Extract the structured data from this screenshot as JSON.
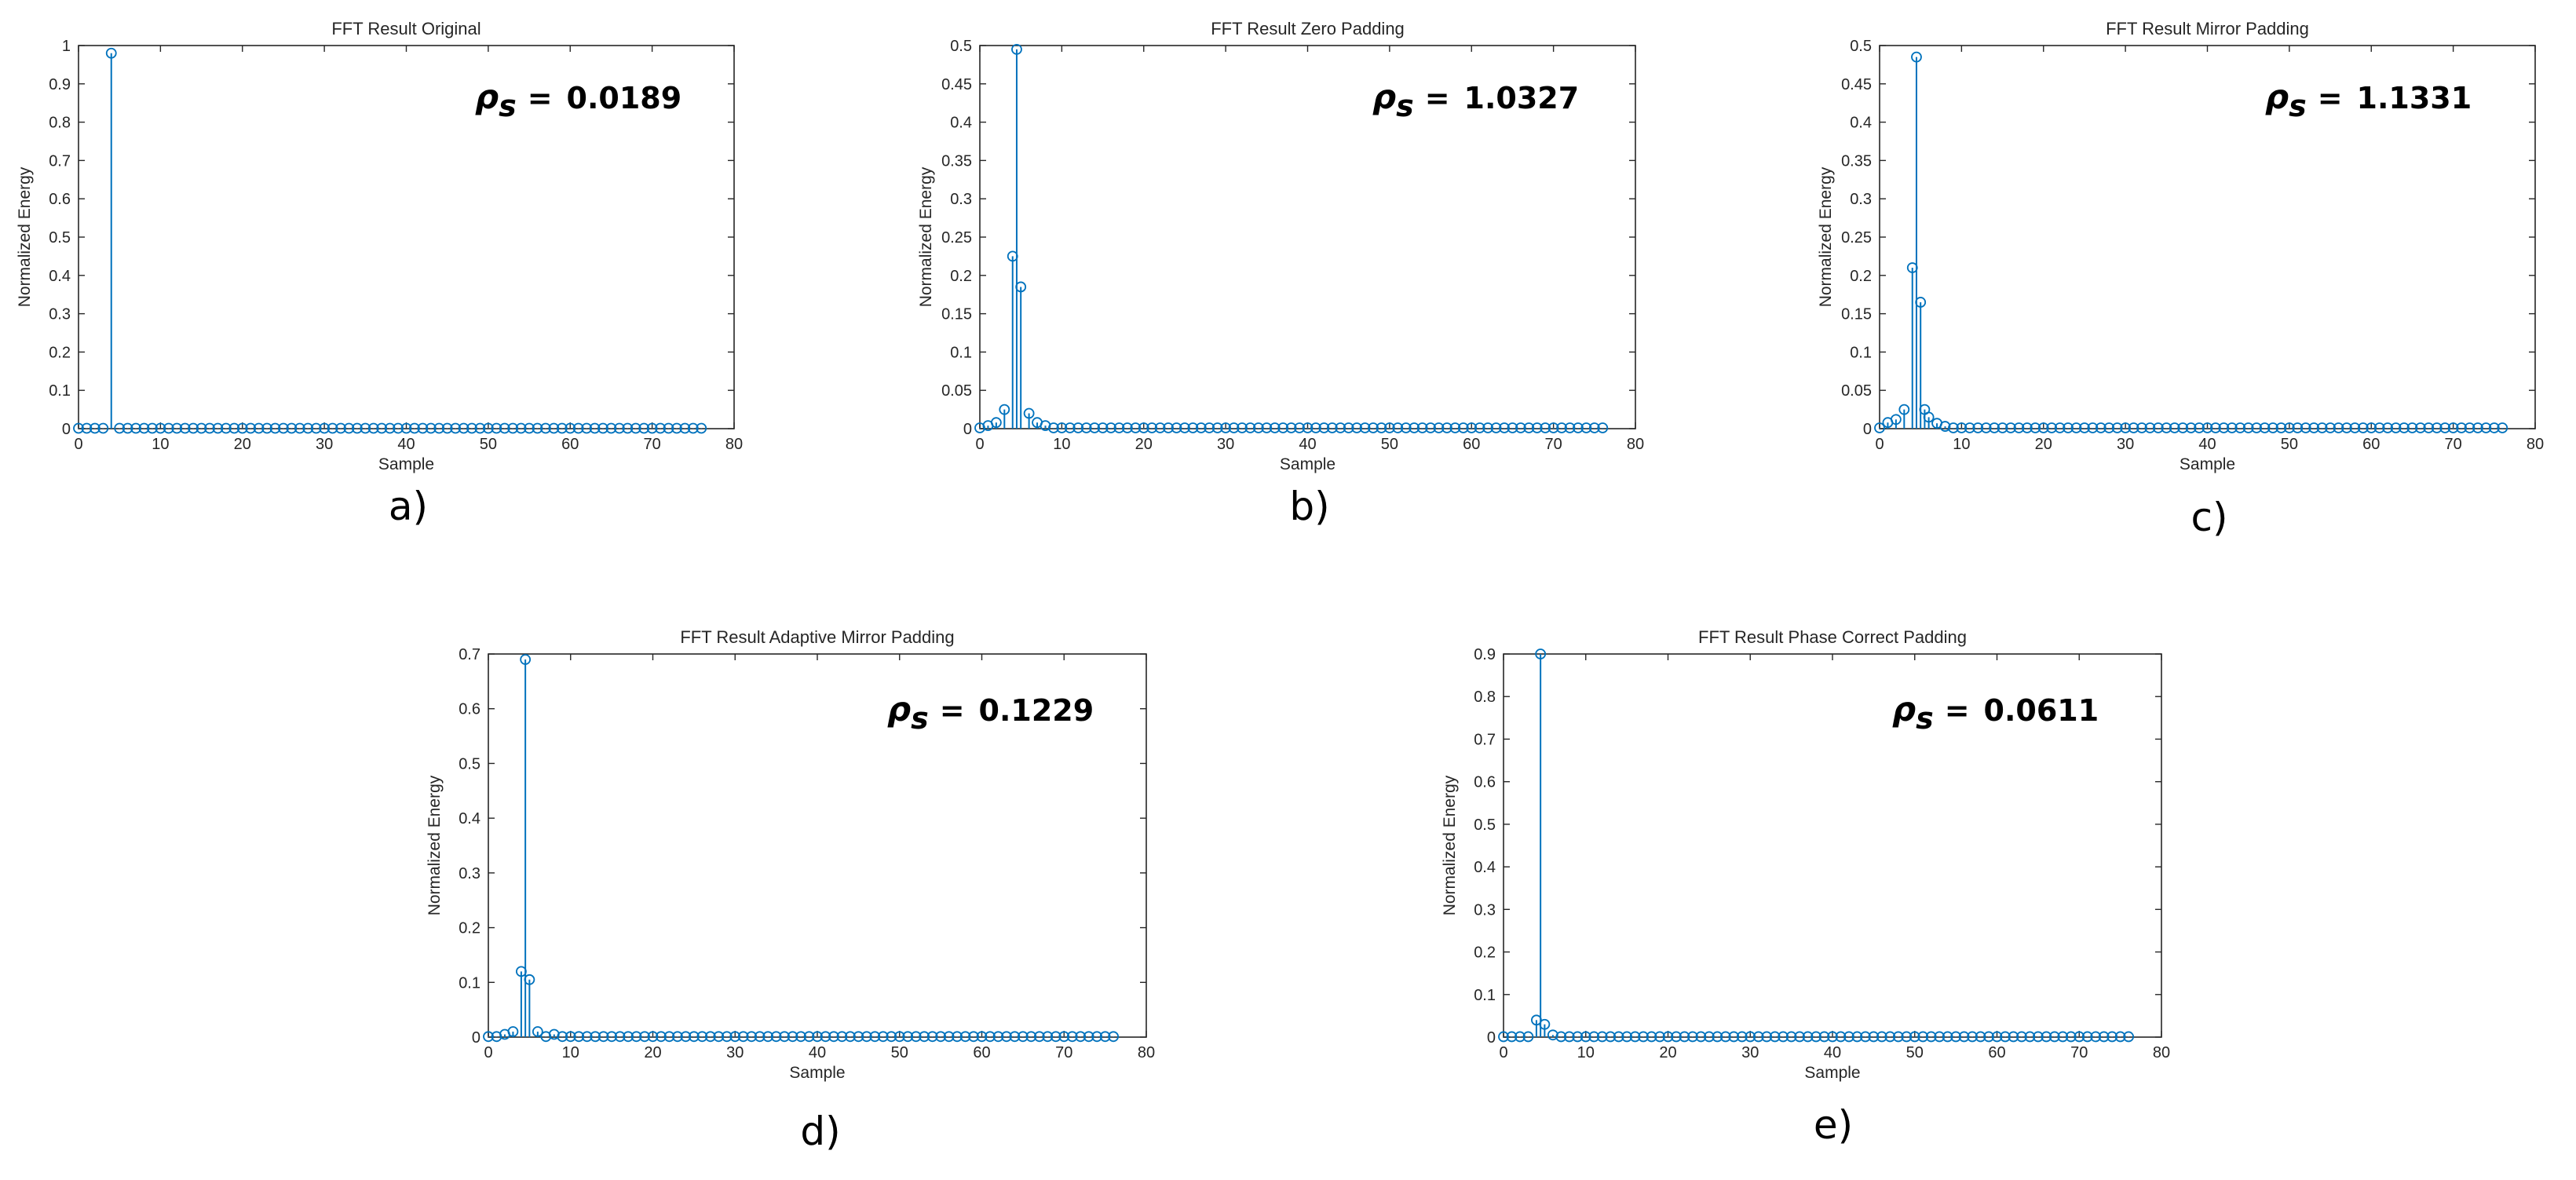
{
  "colors": {
    "stem": "#0072BD",
    "axis": "#262626",
    "background": "#ffffff"
  },
  "chart_data": [
    {
      "type": "stem",
      "caption": "a)",
      "title": "FFT Result Original",
      "xlabel": "Sample",
      "ylabel": "Normalized Energy",
      "xlim": [
        0,
        80
      ],
      "ylim": [
        0,
        1
      ],
      "xticks": [
        "0",
        "10",
        "20",
        "30",
        "40",
        "50",
        "60",
        "70",
        "80"
      ],
      "yticks": [
        "0",
        "0.1",
        "0.2",
        "0.3",
        "0.4",
        "0.5",
        "0.6",
        "0.7",
        "0.8",
        "0.9",
        "1"
      ],
      "rho_symbol": "ρ",
      "rho_sub": "s",
      "rho_value": "0.0189",
      "n_samples": 77,
      "baseline": 0.001,
      "peaks": [
        [
          4,
          0.98
        ]
      ]
    },
    {
      "type": "stem",
      "caption": "b)",
      "title": "FFT Result Zero Padding",
      "xlabel": "Sample",
      "ylabel": "Normalized Energy",
      "xlim": [
        0,
        80
      ],
      "ylim": [
        0,
        0.5
      ],
      "xticks": [
        "0",
        "10",
        "20",
        "30",
        "40",
        "50",
        "60",
        "70",
        "80"
      ],
      "yticks": [
        "0",
        "0.05",
        "0.1",
        "0.15",
        "0.2",
        "0.25",
        "0.3",
        "0.35",
        "0.4",
        "0.45",
        "0.5"
      ],
      "rho_symbol": "ρ",
      "rho_sub": "s",
      "rho_value": "1.0327",
      "n_samples": 77,
      "baseline": 0.001,
      "peaks": [
        [
          1,
          0.004
        ],
        [
          2,
          0.008
        ],
        [
          3,
          0.025
        ],
        [
          4,
          0.225
        ],
        [
          4.5,
          0.495
        ],
        [
          5,
          0.185
        ],
        [
          6,
          0.02
        ],
        [
          7,
          0.008
        ],
        [
          8,
          0.004
        ]
      ]
    },
    {
      "type": "stem",
      "caption": "c)",
      "title": "FFT Result Mirror Padding",
      "xlabel": "Sample",
      "ylabel": "Normalized Energy",
      "xlim": [
        0,
        80
      ],
      "ylim": [
        0,
        0.5
      ],
      "xticks": [
        "0",
        "10",
        "20",
        "30",
        "40",
        "50",
        "60",
        "70",
        "80"
      ],
      "yticks": [
        "0",
        "0.05",
        "0.1",
        "0.15",
        "0.2",
        "0.25",
        "0.3",
        "0.35",
        "0.4",
        "0.45",
        "0.5"
      ],
      "rho_symbol": "ρ",
      "rho_sub": "s",
      "rho_value": "1.1331",
      "n_samples": 77,
      "baseline": 0.001,
      "peaks": [
        [
          1,
          0.008
        ],
        [
          2,
          0.012
        ],
        [
          3,
          0.025
        ],
        [
          4,
          0.21
        ],
        [
          4.5,
          0.485
        ],
        [
          5,
          0.165
        ],
        [
          5.5,
          0.025
        ],
        [
          6,
          0.015
        ],
        [
          7,
          0.007
        ],
        [
          8,
          0.003
        ]
      ]
    },
    {
      "type": "stem",
      "caption": "d)",
      "title": "FFT Result Adaptive Mirror Padding",
      "xlabel": "Sample",
      "ylabel": "Normalized Energy",
      "xlim": [
        0,
        80
      ],
      "ylim": [
        0,
        0.7
      ],
      "xticks": [
        "0",
        "10",
        "20",
        "30",
        "40",
        "50",
        "60",
        "70",
        "80"
      ],
      "yticks": [
        "0",
        "0.1",
        "0.2",
        "0.3",
        "0.4",
        "0.5",
        "0.6",
        "0.7"
      ],
      "rho_symbol": "ρ",
      "rho_sub": "s",
      "rho_value": "0.1229",
      "n_samples": 77,
      "baseline": 0.001,
      "peaks": [
        [
          2,
          0.005
        ],
        [
          3,
          0.01
        ],
        [
          4,
          0.12
        ],
        [
          4.5,
          0.69
        ],
        [
          5,
          0.105
        ],
        [
          6,
          0.01
        ],
        [
          8,
          0.005
        ]
      ]
    },
    {
      "type": "stem",
      "caption": "e)",
      "title": "FFT Result Phase Correct Padding",
      "xlabel": "Sample",
      "ylabel": "Normalized Energy",
      "xlim": [
        0,
        80
      ],
      "ylim": [
        0,
        0.9
      ],
      "xticks": [
        "0",
        "10",
        "20",
        "30",
        "40",
        "50",
        "60",
        "70",
        "80"
      ],
      "yticks": [
        "0",
        "0.1",
        "0.2",
        "0.3",
        "0.4",
        "0.5",
        "0.6",
        "0.7",
        "0.8",
        "0.9"
      ],
      "rho_symbol": "ρ",
      "rho_sub": "s",
      "rho_value": "0.0611",
      "n_samples": 77,
      "baseline": 0.001,
      "peaks": [
        [
          4,
          0.04
        ],
        [
          4.5,
          0.9
        ],
        [
          5,
          0.03
        ],
        [
          6,
          0.005
        ]
      ]
    }
  ]
}
